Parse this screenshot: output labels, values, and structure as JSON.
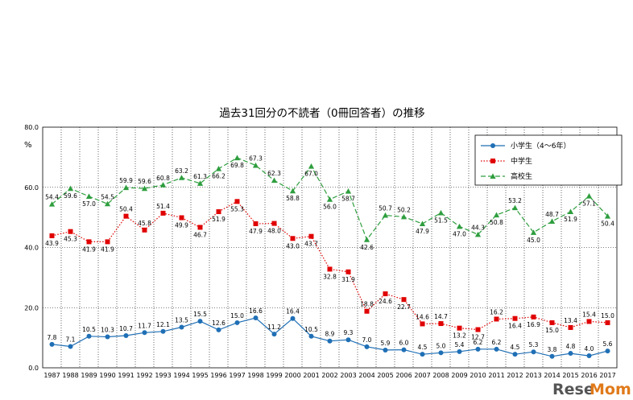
{
  "chart_data": {
    "type": "line",
    "title": "過去31回分の不読者（0冊回答者）の推移",
    "ylabel": "%",
    "ylim": [
      0,
      80
    ],
    "yticks": [
      "0.0",
      "20.0",
      "40.0",
      "60.0",
      "80.0"
    ],
    "categories": [
      "1987",
      "1988",
      "1989",
      "1990",
      "1991",
      "1992",
      "1993",
      "1994",
      "1995",
      "1996",
      "1997",
      "1998",
      "1999",
      "2000",
      "2001",
      "2002",
      "2003",
      "2004",
      "2005",
      "2006",
      "2007",
      "2008",
      "2009",
      "2010",
      "2011",
      "2012",
      "2013",
      "2014",
      "2015",
      "2016",
      "2017"
    ],
    "legend_position": "top-right",
    "grid": true,
    "series": [
      {
        "name": "小学生（4～6年）",
        "color": "#1f6fb5",
        "line": "solid",
        "marker": "circle",
        "values": [
          7.8,
          7.1,
          10.5,
          10.3,
          10.7,
          11.7,
          12.1,
          13.5,
          15.5,
          12.6,
          15.0,
          16.6,
          11.2,
          16.4,
          10.5,
          8.9,
          9.3,
          7.0,
          5.9,
          6.0,
          4.5,
          5.0,
          5.4,
          6.2,
          6.2,
          4.5,
          5.3,
          3.8,
          4.8,
          4.0,
          5.6
        ]
      },
      {
        "name": "中学生",
        "color": "#e00000",
        "line": "dotted",
        "marker": "square",
        "values": [
          43.9,
          45.3,
          41.9,
          41.9,
          50.4,
          45.8,
          51.4,
          49.9,
          46.7,
          51.9,
          55.3,
          47.9,
          48.0,
          43.0,
          43.7,
          32.8,
          31.9,
          18.8,
          24.6,
          22.7,
          14.6,
          14.7,
          13.2,
          12.7,
          16.2,
          16.4,
          16.9,
          15.0,
          13.4,
          15.4,
          15.0
        ]
      },
      {
        "name": "高校生",
        "color": "#2e9e3e",
        "line": "dashed",
        "marker": "triangle",
        "values": [
          54.4,
          59.6,
          57.0,
          54.5,
          59.9,
          59.6,
          60.8,
          63.2,
          61.3,
          66.2,
          69.8,
          67.3,
          62.3,
          58.8,
          67.0,
          56.0,
          58.7,
          42.6,
          50.7,
          50.2,
          47.9,
          51.5,
          47.0,
          44.3,
          50.8,
          53.2,
          45.0,
          48.7,
          51.9,
          57.1,
          50.4
        ]
      }
    ]
  },
  "watermark": {
    "part1": "Rese",
    "part2": "Mom"
  }
}
